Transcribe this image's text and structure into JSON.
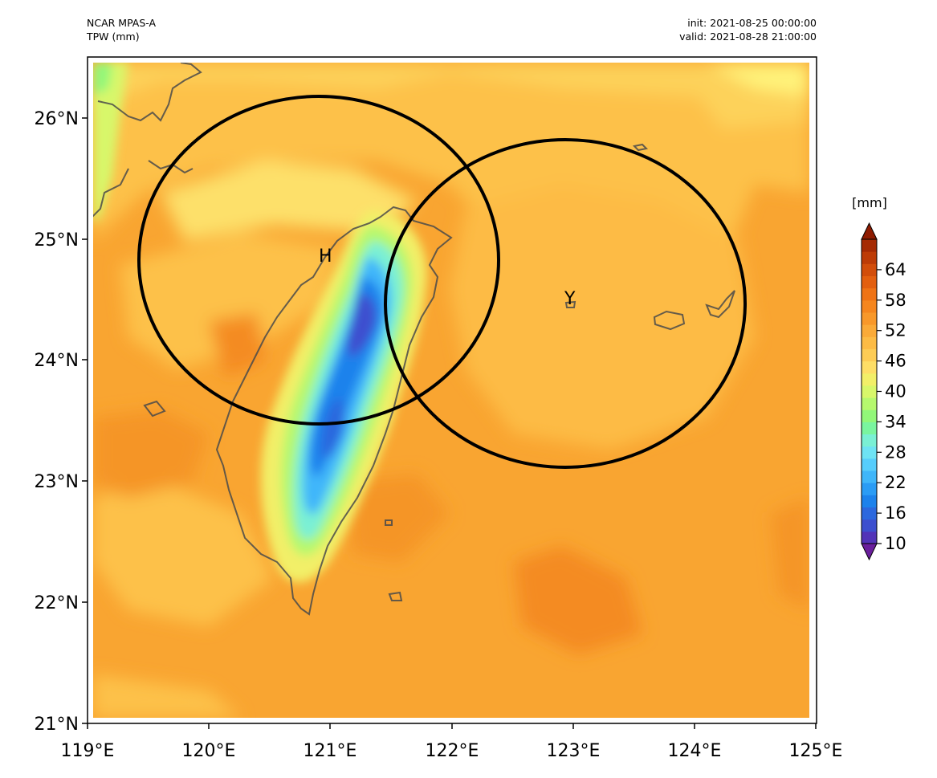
{
  "header": {
    "model": "NCAR MPAS-A",
    "field": "TPW (mm)",
    "init": "init: 2021-08-25 00:00:00",
    "valid": "valid: 2021-08-28 21:00:00"
  },
  "map": {
    "lon_range": [
      119,
      125
    ],
    "lat_range": [
      21,
      26.5
    ],
    "x_ticks": [
      "119°E",
      "120°E",
      "121°E",
      "122°E",
      "123°E",
      "124°E",
      "125°E"
    ],
    "y_ticks": [
      "21°N",
      "22°N",
      "23°N",
      "24°N",
      "25°N",
      "26°N"
    ],
    "circles": [
      {
        "label": "H",
        "center_lon": 120.93,
        "center_lat": 24.84
      },
      {
        "label": "Y",
        "center_lon": 122.95,
        "center_lat": 24.47
      }
    ],
    "dominant_value_mm": "46-52",
    "minimum_region": "Central Mountain Range of Taiwan, ~16 mm"
  },
  "colorbar": {
    "title": "[mm]",
    "tick_labels": [
      "10",
      "16",
      "22",
      "28",
      "34",
      "40",
      "46",
      "52",
      "58",
      "64"
    ],
    "range": [
      10,
      70
    ],
    "step": 3,
    "extend": "both",
    "colors": [
      "#6a1e9c",
      "#5233b8",
      "#3c4fcf",
      "#2c68de",
      "#1c82ec",
      "#2a9cf5",
      "#3fb6fa",
      "#56cdfc",
      "#6ee3f4",
      "#7af0d4",
      "#7af59f",
      "#92f779",
      "#b6f86e",
      "#d8f76a",
      "#f2ef68",
      "#fede66",
      "#fdcc55",
      "#fcbb45",
      "#faaa38",
      "#f8982a",
      "#f5861e",
      "#ef7315",
      "#e35f0f",
      "#d24d0a",
      "#bd3b06",
      "#a52a03",
      "#8e1b01"
    ]
  }
}
